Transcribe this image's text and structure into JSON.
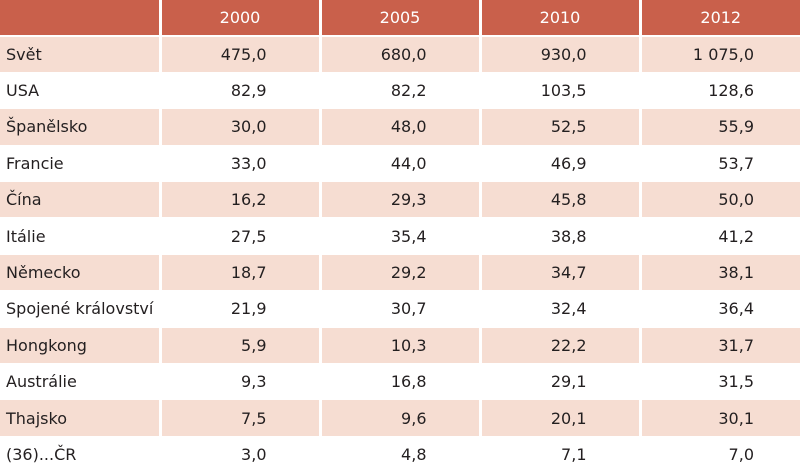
{
  "table": {
    "header": [
      "",
      "2000",
      "2005",
      "2010",
      "2012"
    ],
    "rows": [
      {
        "label": "Svět",
        "values": [
          "475,0",
          "680,0",
          "930,0",
          "1 075,0"
        ]
      },
      {
        "label": "USA",
        "values": [
          "82,9",
          "82,2",
          "103,5",
          "128,6"
        ]
      },
      {
        "label": "Španělsko",
        "values": [
          "30,0",
          "48,0",
          "52,5",
          "55,9"
        ]
      },
      {
        "label": "Francie",
        "values": [
          "33,0",
          "44,0",
          "46,9",
          "53,7"
        ]
      },
      {
        "label": "Čína",
        "values": [
          "16,2",
          "29,3",
          "45,8",
          "50,0"
        ]
      },
      {
        "label": "Itálie",
        "values": [
          "27,5",
          "35,4",
          "38,8",
          "41,2"
        ]
      },
      {
        "label": "Německo",
        "values": [
          "18,7",
          "29,2",
          "34,7",
          "38,1"
        ]
      },
      {
        "label": "Spojené království",
        "values": [
          "21,9",
          "30,7",
          "32,4",
          "36,4"
        ]
      },
      {
        "label": "Hongkong",
        "values": [
          "5,9",
          "10,3",
          "22,2",
          "31,7"
        ]
      },
      {
        "label": "Austrálie",
        "values": [
          "9,3",
          "16,8",
          "29,1",
          "31,5"
        ]
      },
      {
        "label": "Thajsko",
        "values": [
          "7,5",
          "9,6",
          "20,1",
          "30,1"
        ]
      },
      {
        "label": "(36)...ČR",
        "values": [
          "3,0",
          "4,8",
          "7,1",
          "7,0"
        ]
      }
    ]
  },
  "colors": {
    "header_bg": "#c9604b",
    "header_text": "#ffffff",
    "row_stripe": "#f6ddd2",
    "row_plain": "#ffffff",
    "text": "#231f20"
  }
}
